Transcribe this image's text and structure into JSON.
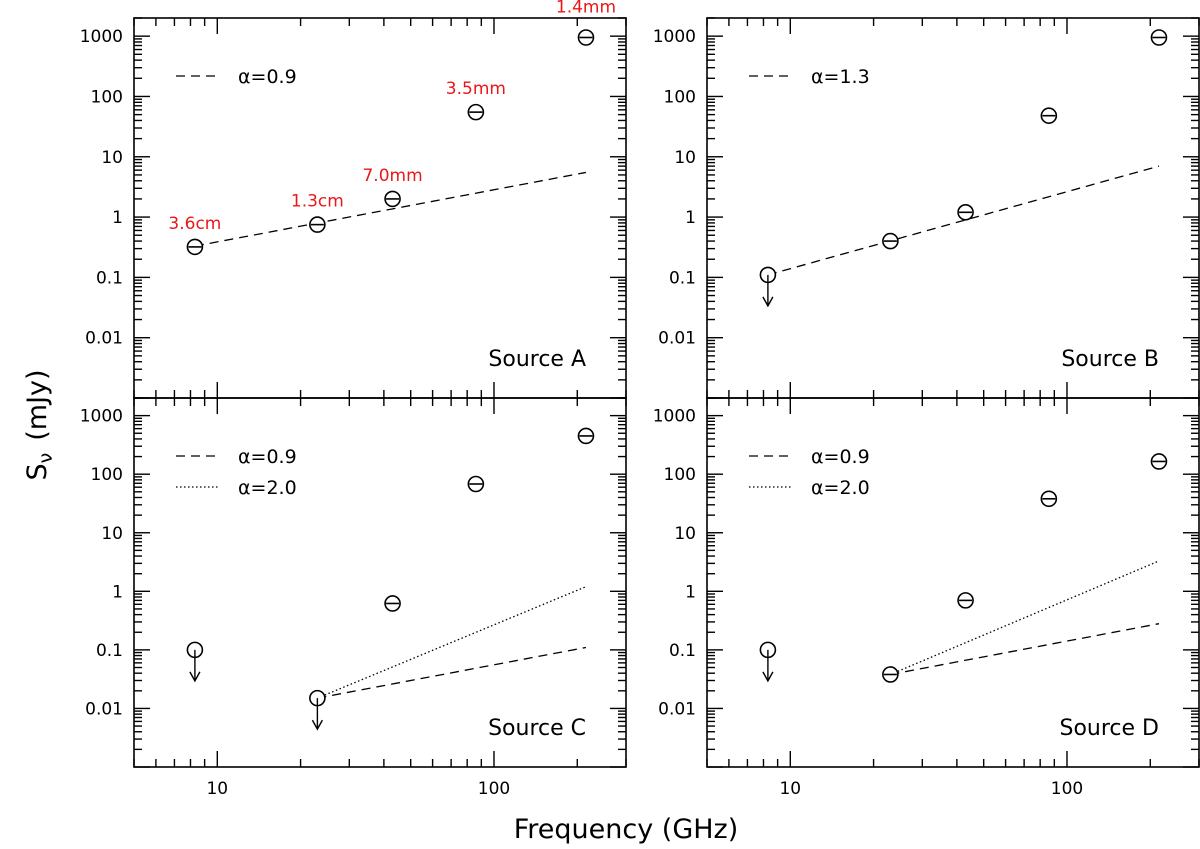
{
  "figure": {
    "xlabel": "Frequency (GHz)",
    "ylabel_main": "S",
    "ylabel_sub": "ν",
    "ylabel_unit": "(mJy)"
  },
  "chart_data": [
    {
      "type": "scatter",
      "title": "Source A",
      "xscale": "log",
      "yscale": "log",
      "xlim": [
        5,
        300
      ],
      "ylim": [
        0.001,
        2000
      ],
      "xticklabels": [
        "10",
        "100"
      ],
      "yticklabels": [
        "0.01",
        "0.1",
        "1",
        "10",
        "100",
        "1000"
      ],
      "points": [
        {
          "x": 8.3,
          "y": 0.32,
          "upper_limit": false,
          "band": "3.6cm"
        },
        {
          "x": 23,
          "y": 0.75,
          "upper_limit": false,
          "band": "1.3cm"
        },
        {
          "x": 43,
          "y": 2.0,
          "upper_limit": false,
          "band": "7.0mm"
        },
        {
          "x": 86,
          "y": 55,
          "upper_limit": false,
          "band": "3.5mm"
        },
        {
          "x": 215,
          "y": 950,
          "upper_limit": false,
          "band": "1.4mm"
        }
      ],
      "fits": [
        {
          "label": "α=0.9",
          "style": "dashed",
          "x": [
            8.3,
            215
          ],
          "y": [
            0.33,
            5.5
          ]
        }
      ],
      "legend_position": "top-left"
    },
    {
      "type": "scatter",
      "title": "Source B",
      "xscale": "log",
      "yscale": "log",
      "xlim": [
        5,
        300
      ],
      "ylim": [
        0.001,
        2000
      ],
      "xticklabels": [
        "10",
        "100"
      ],
      "yticklabels": [
        "0.01",
        "0.1",
        "1",
        "10",
        "100",
        "1000"
      ],
      "points": [
        {
          "x": 8.3,
          "y": 0.11,
          "upper_limit": true
        },
        {
          "x": 23,
          "y": 0.4,
          "upper_limit": false
        },
        {
          "x": 43,
          "y": 1.2,
          "upper_limit": false
        },
        {
          "x": 86,
          "y": 48,
          "upper_limit": false
        },
        {
          "x": 215,
          "y": 950,
          "upper_limit": false
        }
      ],
      "fits": [
        {
          "label": "α=1.3",
          "style": "dashed",
          "x": [
            8.3,
            215
          ],
          "y": [
            0.11,
            7.0
          ]
        }
      ],
      "legend_position": "top-left"
    },
    {
      "type": "scatter",
      "title": "Source C",
      "xscale": "log",
      "yscale": "log",
      "xlim": [
        5,
        300
      ],
      "ylim": [
        0.001,
        2000
      ],
      "xticklabels": [
        "10",
        "100"
      ],
      "yticklabels": [
        "0.01",
        "0.1",
        "1",
        "10",
        "100",
        "1000"
      ],
      "points": [
        {
          "x": 8.3,
          "y": 0.1,
          "upper_limit": true
        },
        {
          "x": 23,
          "y": 0.015,
          "upper_limit": true
        },
        {
          "x": 43,
          "y": 0.62,
          "upper_limit": false
        },
        {
          "x": 86,
          "y": 68,
          "upper_limit": false
        },
        {
          "x": 215,
          "y": 450,
          "upper_limit": false
        }
      ],
      "fits": [
        {
          "label": "α=0.9",
          "style": "dashed",
          "x": [
            23,
            215
          ],
          "y": [
            0.015,
            0.11
          ]
        },
        {
          "label": "α=2.0",
          "style": "dotted",
          "x": [
            23,
            215
          ],
          "y": [
            0.015,
            1.2
          ]
        }
      ],
      "legend_position": "top-left"
    },
    {
      "type": "scatter",
      "title": "Source D",
      "xscale": "log",
      "yscale": "log",
      "xlim": [
        5,
        300
      ],
      "ylim": [
        0.001,
        2000
      ],
      "xticklabels": [
        "10",
        "100"
      ],
      "yticklabels": [
        "0.01",
        "0.1",
        "1",
        "10",
        "100",
        "1000"
      ],
      "points": [
        {
          "x": 8.3,
          "y": 0.1,
          "upper_limit": true
        },
        {
          "x": 23,
          "y": 0.038,
          "upper_limit": false
        },
        {
          "x": 43,
          "y": 0.7,
          "upper_limit": false
        },
        {
          "x": 86,
          "y": 38,
          "upper_limit": false
        },
        {
          "x": 215,
          "y": 165,
          "upper_limit": false
        }
      ],
      "fits": [
        {
          "label": "α=0.9",
          "style": "dashed",
          "x": [
            23,
            215
          ],
          "y": [
            0.038,
            0.28
          ]
        },
        {
          "label": "α=2.0",
          "style": "dotted",
          "x": [
            23,
            215
          ],
          "y": [
            0.038,
            3.3
          ]
        }
      ],
      "legend_position": "top-left"
    }
  ]
}
